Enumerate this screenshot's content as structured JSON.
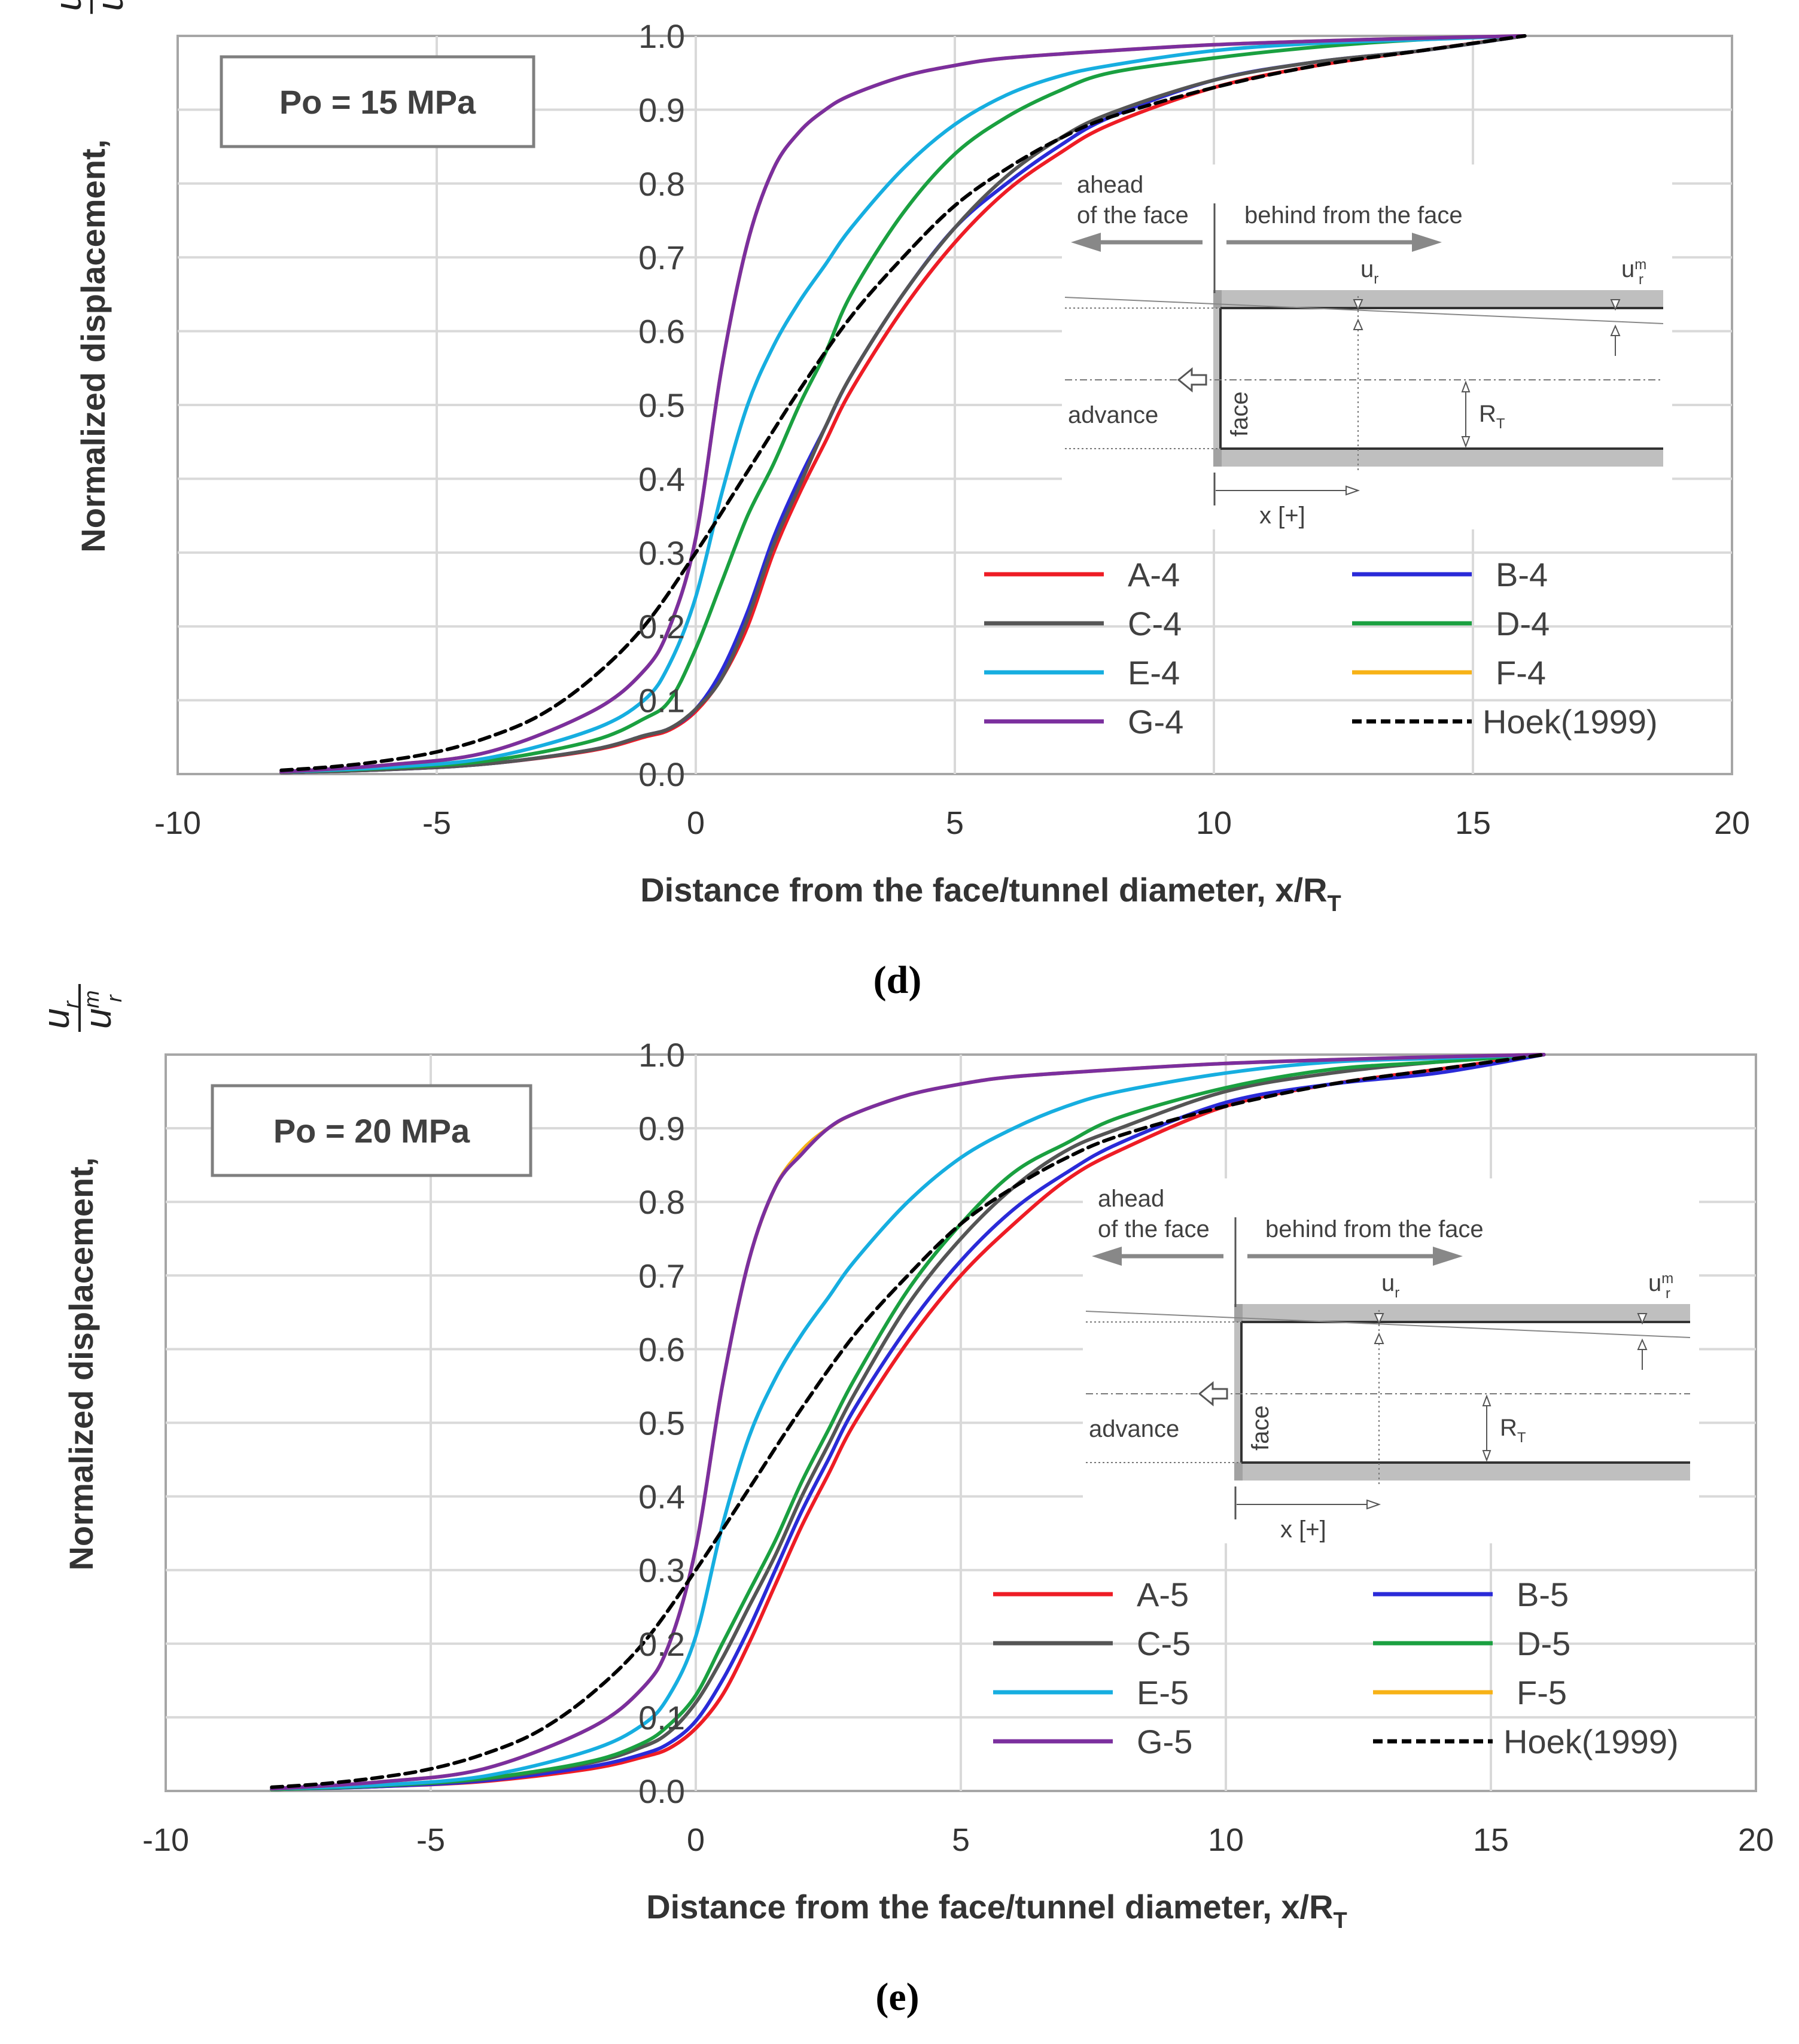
{
  "chart_data": [
    {
      "type": "line",
      "panel_label": "(d)",
      "annotation_box": "Po = 15 MPa",
      "xlabel": "Distance from the face/tunnel diameter,",
      "xlabel_symbol": "x/R",
      "xlabel_sub": "T",
      "ylabel": "Normalized displacement,",
      "ylabel_num": "u",
      "ylabel_num_sub": "r",
      "ylabel_den": "u",
      "ylabel_den_sub": "r",
      "ylabel_den_sup": "m",
      "xlim": [
        -10,
        20
      ],
      "ylim": [
        0.0,
        1.0
      ],
      "xticks": [
        "-10",
        "-5",
        "0",
        "5",
        "10",
        "15",
        "20"
      ],
      "yticks": [
        "0.0",
        "0.1",
        "0.2",
        "0.3",
        "0.4",
        "0.5",
        "0.6",
        "0.7",
        "0.8",
        "0.9",
        "1.0"
      ],
      "grid": true,
      "legend_position": "lower-right",
      "inset": {
        "ahead": "ahead",
        "ahead2": "of the face",
        "behind": "behind from the face",
        "ur": "u",
        "ur_sub": "r",
        "urm": "u",
        "urm_sub": "r",
        "urm_sup": "m",
        "advance": "advance",
        "face": "face",
        "rt": "R",
        "rt_sub": "T",
        "x": "x [+]"
      },
      "series": [
        {
          "name": "A-4",
          "color": "#ee1c25",
          "dashed": false,
          "x": [
            -8,
            -6,
            -4,
            -2,
            -1,
            -0.5,
            0,
            0.5,
            1,
            1.5,
            2,
            2.5,
            3,
            4,
            5,
            6,
            7,
            8,
            10,
            12,
            14,
            16
          ],
          "y": [
            0.002,
            0.006,
            0.014,
            0.032,
            0.05,
            0.06,
            0.085,
            0.13,
            0.2,
            0.3,
            0.38,
            0.45,
            0.52,
            0.63,
            0.72,
            0.79,
            0.84,
            0.88,
            0.93,
            0.96,
            0.98,
            1.0
          ]
        },
        {
          "name": "B-4",
          "color": "#2a2ad8",
          "dashed": false,
          "x": [
            -8,
            -6,
            -4,
            -2,
            -1,
            -0.5,
            0,
            0.5,
            1,
            1.5,
            2,
            2.5,
            3,
            4,
            5,
            6,
            7,
            8,
            10,
            12,
            14,
            16
          ],
          "y": [
            0.002,
            0.006,
            0.014,
            0.033,
            0.052,
            0.062,
            0.088,
            0.14,
            0.22,
            0.32,
            0.4,
            0.47,
            0.54,
            0.65,
            0.74,
            0.8,
            0.85,
            0.89,
            0.94,
            0.965,
            0.98,
            1.0
          ]
        },
        {
          "name": "C-4",
          "color": "#555555",
          "dashed": false,
          "x": [
            -8,
            -6,
            -4,
            -2,
            -1,
            -0.5,
            0,
            0.5,
            1,
            1.5,
            2,
            2.5,
            3,
            4,
            5,
            6,
            7,
            8,
            10,
            12,
            14,
            16
          ],
          "y": [
            0.002,
            0.006,
            0.014,
            0.033,
            0.052,
            0.062,
            0.088,
            0.13,
            0.21,
            0.31,
            0.39,
            0.47,
            0.54,
            0.65,
            0.74,
            0.81,
            0.86,
            0.895,
            0.94,
            0.965,
            0.98,
            1.0
          ]
        },
        {
          "name": "D-4",
          "color": "#1aa040",
          "dashed": false,
          "x": [
            -8,
            -6,
            -4,
            -2,
            -1,
            -0.5,
            0,
            0.5,
            1,
            1.5,
            2,
            2.5,
            3,
            4,
            5,
            6,
            7,
            8,
            10,
            12,
            14,
            16
          ],
          "y": [
            0.003,
            0.008,
            0.018,
            0.045,
            0.075,
            0.1,
            0.17,
            0.26,
            0.35,
            0.42,
            0.5,
            0.57,
            0.65,
            0.76,
            0.84,
            0.89,
            0.925,
            0.95,
            0.97,
            0.985,
            0.995,
            1.0
          ]
        },
        {
          "name": "E-4",
          "color": "#16aee0",
          "dashed": false,
          "x": [
            -8,
            -6,
            -4,
            -2,
            -1,
            -0.5,
            0,
            0.5,
            1,
            1.5,
            2,
            2.5,
            3,
            4,
            5,
            6,
            7,
            8,
            10,
            12,
            14,
            16
          ],
          "y": [
            0.003,
            0.009,
            0.022,
            0.06,
            0.1,
            0.15,
            0.24,
            0.38,
            0.5,
            0.58,
            0.64,
            0.69,
            0.74,
            0.82,
            0.88,
            0.92,
            0.945,
            0.96,
            0.98,
            0.99,
            0.995,
            1.0
          ]
        },
        {
          "name": "F-4",
          "color": "#f7b216",
          "dashed": false,
          "x": [
            -8,
            -6,
            -4,
            -2,
            -1,
            -0.5,
            0,
            0.5,
            1,
            1.5,
            2,
            2.5,
            3,
            4,
            5,
            6,
            8,
            10,
            12,
            14,
            16
          ],
          "y": [
            0.003,
            0.012,
            0.03,
            0.085,
            0.14,
            0.2,
            0.32,
            0.55,
            0.72,
            0.82,
            0.87,
            0.9,
            0.92,
            0.945,
            0.96,
            0.97,
            0.98,
            0.988,
            0.993,
            0.997,
            1.0
          ]
        },
        {
          "name": "G-4",
          "color": "#7b2f9e",
          "dashed": false,
          "x": [
            -8,
            -6,
            -4,
            -2,
            -1,
            -0.5,
            0,
            0.5,
            1,
            1.5,
            2,
            2.5,
            3,
            4,
            5,
            6,
            8,
            10,
            12,
            14,
            16
          ],
          "y": [
            0.003,
            0.012,
            0.03,
            0.085,
            0.14,
            0.2,
            0.32,
            0.55,
            0.72,
            0.82,
            0.87,
            0.9,
            0.92,
            0.945,
            0.96,
            0.97,
            0.98,
            0.988,
            0.993,
            0.997,
            1.0
          ]
        },
        {
          "name": "Hoek(1999)",
          "color": "#000000",
          "dashed": true,
          "x": [
            -8,
            -7,
            -6,
            -5,
            -4,
            -3,
            -2,
            -1,
            0,
            1,
            2,
            3,
            4,
            5,
            6,
            7,
            8,
            10,
            12,
            14,
            16
          ],
          "y": [
            0.005,
            0.01,
            0.018,
            0.03,
            0.05,
            0.08,
            0.13,
            0.2,
            0.3,
            0.41,
            0.52,
            0.62,
            0.7,
            0.77,
            0.82,
            0.86,
            0.89,
            0.93,
            0.96,
            0.98,
            1.0
          ]
        }
      ]
    },
    {
      "type": "line",
      "panel_label": "(e)",
      "annotation_box": "Po = 20 MPa",
      "xlabel": "Distance from the face/tunnel diameter,",
      "xlabel_symbol": "x/R",
      "xlabel_sub": "T",
      "ylabel": "Normalized displacement,",
      "ylabel_num": "u",
      "ylabel_num_sub": "r",
      "ylabel_den": "u",
      "ylabel_den_sub": "r",
      "ylabel_den_sup": "m",
      "xlim": [
        -10,
        20
      ],
      "ylim": [
        0.0,
        1.0
      ],
      "xticks": [
        "-10",
        "-5",
        "0",
        "5",
        "10",
        "15",
        "20"
      ],
      "yticks": [
        "0.0",
        "0.1",
        "0.2",
        "0.3",
        "0.4",
        "0.5",
        "0.6",
        "0.7",
        "0.8",
        "0.9",
        "1.0"
      ],
      "grid": true,
      "legend_position": "lower-right",
      "inset": {
        "ahead": "ahead",
        "ahead2": "of the face",
        "behind": "behind from the face",
        "ur": "u",
        "ur_sub": "r",
        "urm": "u",
        "urm_sub": "r",
        "urm_sup": "m",
        "advance": "advance",
        "face": "face",
        "rt": "R",
        "rt_sub": "T",
        "x": "x [+]"
      },
      "series": [
        {
          "name": "A-5",
          "color": "#ee1c25",
          "dashed": false,
          "x": [
            -8,
            -6,
            -4,
            -2,
            -1,
            -0.5,
            0,
            0.5,
            1,
            1.5,
            2,
            2.5,
            3,
            4,
            5,
            6,
            7,
            8,
            10,
            12,
            14,
            16
          ],
          "y": [
            0.002,
            0.006,
            0.013,
            0.03,
            0.046,
            0.058,
            0.085,
            0.13,
            0.2,
            0.28,
            0.36,
            0.43,
            0.5,
            0.61,
            0.7,
            0.77,
            0.83,
            0.87,
            0.93,
            0.96,
            0.98,
            1.0
          ]
        },
        {
          "name": "B-5",
          "color": "#2a2ad8",
          "dashed": false,
          "x": [
            -8,
            -6,
            -4,
            -2,
            -1,
            -0.5,
            0,
            0.5,
            1,
            1.5,
            2,
            2.5,
            3,
            4,
            5,
            6,
            7,
            8,
            10,
            12,
            14,
            16
          ],
          "y": [
            0.002,
            0.006,
            0.014,
            0.033,
            0.05,
            0.065,
            0.095,
            0.15,
            0.22,
            0.3,
            0.38,
            0.45,
            0.52,
            0.63,
            0.72,
            0.79,
            0.84,
            0.88,
            0.935,
            0.96,
            0.975,
            1.0
          ]
        },
        {
          "name": "C-5",
          "color": "#555555",
          "dashed": false,
          "x": [
            -8,
            -6,
            -4,
            -2,
            -1,
            -0.5,
            0,
            0.5,
            1,
            1.5,
            2,
            2.5,
            3,
            4,
            5,
            6,
            7,
            8,
            10,
            12,
            14,
            16
          ],
          "y": [
            0.002,
            0.007,
            0.016,
            0.038,
            0.06,
            0.08,
            0.12,
            0.18,
            0.25,
            0.32,
            0.4,
            0.47,
            0.54,
            0.66,
            0.75,
            0.82,
            0.87,
            0.9,
            0.95,
            0.975,
            0.99,
            1.0
          ]
        },
        {
          "name": "D-5",
          "color": "#1aa040",
          "dashed": false,
          "x": [
            -8,
            -6,
            -4,
            -2,
            -1,
            -0.5,
            0,
            0.5,
            1,
            1.5,
            2,
            2.5,
            3,
            4,
            5,
            6,
            7,
            8,
            10,
            12,
            14,
            16
          ],
          "y": [
            0.002,
            0.007,
            0.017,
            0.04,
            0.065,
            0.09,
            0.13,
            0.2,
            0.27,
            0.34,
            0.42,
            0.49,
            0.56,
            0.68,
            0.77,
            0.84,
            0.88,
            0.915,
            0.955,
            0.98,
            0.99,
            1.0
          ]
        },
        {
          "name": "E-5",
          "color": "#16aee0",
          "dashed": false,
          "x": [
            -8,
            -6,
            -4,
            -2,
            -1,
            -0.5,
            0,
            0.5,
            1,
            1.5,
            2,
            2.5,
            3,
            4,
            5,
            6,
            7,
            8,
            10,
            12,
            14,
            16
          ],
          "y": [
            0.003,
            0.008,
            0.02,
            0.055,
            0.09,
            0.13,
            0.21,
            0.36,
            0.48,
            0.56,
            0.62,
            0.67,
            0.72,
            0.8,
            0.86,
            0.9,
            0.93,
            0.95,
            0.975,
            0.99,
            0.995,
            1.0
          ]
        },
        {
          "name": "F-5",
          "color": "#f7b216",
          "dashed": false,
          "x": [
            -8,
            -6,
            -4,
            -2,
            -1,
            -0.5,
            0,
            0.5,
            1,
            1.5,
            2,
            2.5,
            3,
            4,
            5,
            6,
            8,
            10,
            12,
            14,
            16
          ],
          "y": [
            0.003,
            0.012,
            0.03,
            0.085,
            0.14,
            0.2,
            0.33,
            0.55,
            0.72,
            0.82,
            0.87,
            0.9,
            0.92,
            0.945,
            0.96,
            0.97,
            0.98,
            0.988,
            0.993,
            0.997,
            1.0
          ]
        },
        {
          "name": "G-5",
          "color": "#7b2f9e",
          "dashed": false,
          "x": [
            -8,
            -6,
            -4,
            -2,
            -1,
            -0.5,
            0,
            0.5,
            1,
            1.5,
            2,
            2.5,
            3,
            4,
            5,
            6,
            8,
            10,
            12,
            14,
            16
          ],
          "y": [
            0.003,
            0.012,
            0.03,
            0.085,
            0.14,
            0.2,
            0.33,
            0.55,
            0.72,
            0.82,
            0.865,
            0.9,
            0.92,
            0.945,
            0.96,
            0.97,
            0.98,
            0.988,
            0.993,
            0.997,
            1.0
          ]
        },
        {
          "name": "Hoek(1999)",
          "color": "#000000",
          "dashed": true,
          "x": [
            -8,
            -7,
            -6,
            -5,
            -4,
            -3,
            -2,
            -1,
            0,
            1,
            2,
            3,
            4,
            5,
            6,
            7,
            8,
            10,
            12,
            14,
            16
          ],
          "y": [
            0.005,
            0.01,
            0.018,
            0.03,
            0.05,
            0.08,
            0.13,
            0.2,
            0.3,
            0.41,
            0.52,
            0.62,
            0.7,
            0.77,
            0.82,
            0.86,
            0.89,
            0.93,
            0.96,
            0.98,
            1.0
          ]
        }
      ]
    }
  ]
}
